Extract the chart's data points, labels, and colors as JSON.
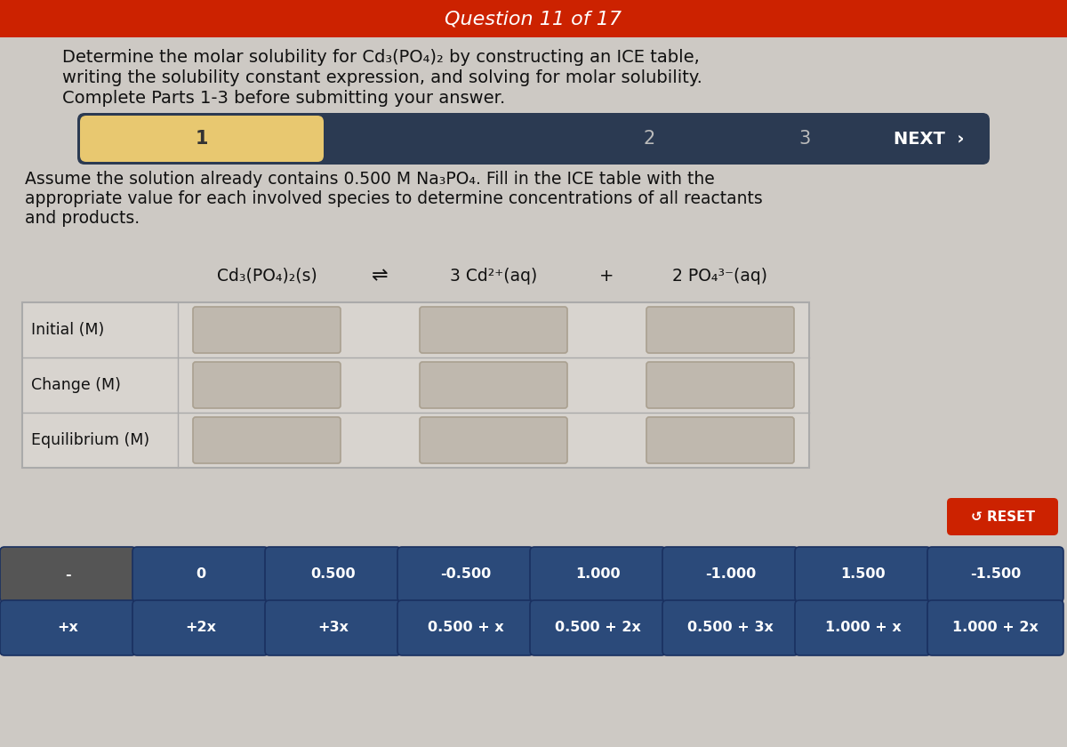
{
  "header_text": "Question 11 of 17",
  "header_bg": "#cc2200",
  "main_bg": "#cdc9c4",
  "title_line1": "Determine the molar solubility for Cd₃(PO₄)₂ by constructing an ICE table,",
  "title_line2": "writing the solubility constant expression, and solving for molar solubility.",
  "title_line3": "Complete Parts 1-3 before submitting your answer.",
  "nav_bg": "#2b3a52",
  "nav_active_bg": "#e8c870",
  "subtitle_line1": "Assume the solution already contains 0.500 M Na₃PO₄. Fill in the ICE table with the",
  "subtitle_line2": "appropriate value for each involved species to determine concentrations of all reactants",
  "subtitle_line3": "and products.",
  "ice_col1": "Cd₃(PO₄)₂(s)",
  "ice_arrow": "⇌",
  "ice_col2": "3 Cd²⁺(aq)",
  "ice_plus": "+",
  "ice_col3": "2 PO₄³⁻(aq)",
  "ice_rows": [
    "Initial (M)",
    "Change (M)",
    "Equilibrium (M)"
  ],
  "input_box_color": "#bfb8ae",
  "input_box_border": "#aaa090",
  "reset_btn_color": "#cc2200",
  "reset_text": "↺ RESET",
  "answer_btn_bg": "#2b4a7a",
  "answer_row1": [
    "-",
    "0",
    "0.500",
    "-0.500",
    "1.000",
    "-1.000",
    "1.500",
    "-1.500"
  ],
  "answer_row2": [
    "+x",
    "+2x",
    "+3x",
    "0.500 + x",
    "0.500 + 2x",
    "0.500 + 3x",
    "1.000 + x",
    "1.000 + 2x"
  ],
  "answer_btn1_bg": "#555555",
  "answer_btn_text_color": "#ffffff",
  "body_text_color": "#111111",
  "header_text_color": "#ffffff",
  "table_bg": "#d8d4cf",
  "table_border": "#aaaaaa"
}
